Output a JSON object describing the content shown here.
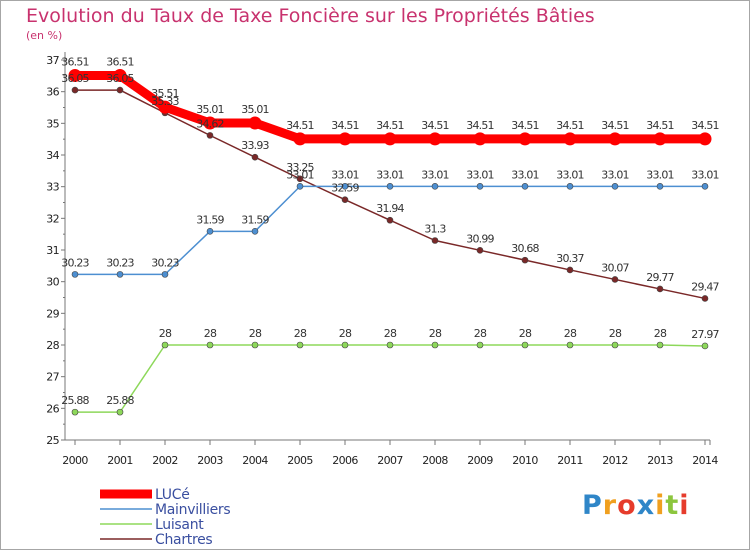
{
  "chart_data": {
    "type": "line",
    "title": "Evolution du Taux de Taxe Foncière sur les Propriétés Bâties",
    "subtitle": "(en %)",
    "x": [
      "2000",
      "2001",
      "2002",
      "2003",
      "2004",
      "2005",
      "2006",
      "2007",
      "2008",
      "2009",
      "2010",
      "2011",
      "2012",
      "2013",
      "2014"
    ],
    "ylim": [
      25,
      37
    ],
    "yticks": [
      25,
      26,
      27,
      28,
      29,
      30,
      31,
      32,
      33,
      34,
      35,
      36,
      37
    ],
    "grid": false,
    "legend_position": "bottom-left",
    "series": [
      {
        "name": "LUCé",
        "color": "#ff0000",
        "labels": [
          "36.51",
          "36.51",
          "35.51",
          "35.01",
          "35.01",
          "34.51",
          "34.51",
          "34.51",
          "34.51",
          "34.51",
          "34.51",
          "34.51",
          "34.51",
          "34.51",
          "34.51"
        ],
        "values": [
          36.51,
          36.51,
          35.51,
          35.01,
          35.01,
          34.51,
          34.51,
          34.51,
          34.51,
          34.51,
          34.51,
          34.51,
          34.51,
          34.51,
          34.51
        ]
      },
      {
        "name": "Mainvilliers",
        "color": "#4d8fd1",
        "labels": [
          "30.23",
          "30.23",
          "30.23",
          "31.59",
          "31.59",
          "33.01",
          "33.01",
          "33.01",
          "33.01",
          "33.01",
          "33.01",
          "33.01",
          "33.01",
          "33.01",
          "33.01"
        ],
        "values": [
          30.23,
          30.23,
          30.23,
          31.59,
          31.59,
          33.01,
          33.01,
          33.01,
          33.01,
          33.01,
          33.01,
          33.01,
          33.01,
          33.01,
          33.01
        ]
      },
      {
        "name": "Luisant",
        "color": "#8dd85a",
        "labels": [
          "25.88",
          "25.88",
          "28",
          "28",
          "28",
          "28",
          "28",
          "28",
          "28",
          "28",
          "28",
          "28",
          "28",
          "28",
          "27.97"
        ],
        "values": [
          25.88,
          25.88,
          28,
          28,
          28,
          28,
          28,
          28,
          28,
          28,
          28,
          28,
          28,
          28,
          27.97
        ]
      },
      {
        "name": "Chartres",
        "color": "#7a2828",
        "labels": [
          "36.05",
          "36.05",
          "35.33",
          "34.62",
          "33.93",
          "33.25",
          "32.59",
          "31.94",
          "31.3",
          "30.99",
          "30.68",
          "30.37",
          "30.07",
          "29.77",
          "29.47"
        ],
        "values": [
          36.05,
          36.05,
          35.33,
          34.62,
          33.93,
          33.25,
          32.59,
          31.94,
          31.3,
          30.99,
          30.68,
          30.37,
          30.07,
          29.77,
          29.47
        ]
      }
    ]
  },
  "brand": {
    "letters": [
      "P",
      "r",
      "o",
      "x",
      "i",
      "t",
      "i"
    ],
    "colors": [
      "#2f86c8",
      "#f0a020",
      "#e63c2c",
      "#2f86c8",
      "#f0a020",
      "#8cc63e",
      "#e63c2c"
    ]
  }
}
